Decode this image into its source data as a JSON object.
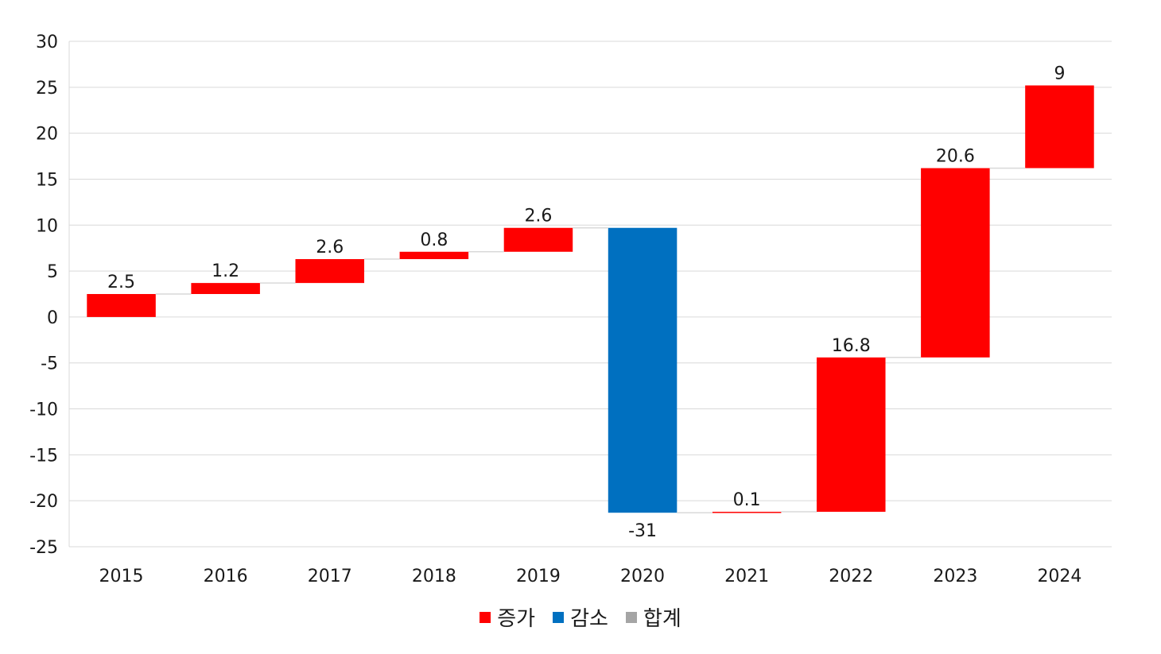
{
  "chart_data": {
    "type": "waterfall",
    "categories": [
      "2015",
      "2016",
      "2017",
      "2018",
      "2019",
      "2020",
      "2021",
      "2022",
      "2023",
      "2024"
    ],
    "values": [
      2.5,
      1.2,
      2.6,
      0.8,
      2.6,
      -31,
      0.1,
      16.8,
      20.6,
      9
    ],
    "value_labels": [
      "2.5",
      "1.2",
      "2.6",
      "0.8",
      "2.6",
      "-31",
      "0.1",
      "16.8",
      "20.6",
      "9"
    ],
    "ylim": [
      -25,
      30
    ],
    "yticks": [
      30,
      25,
      20,
      15,
      10,
      5,
      0,
      -5,
      -10,
      -15,
      -20,
      -25
    ],
    "grid": true,
    "legend_position": "bottom",
    "legend": [
      {
        "name": "증가",
        "color": "#ff0000"
      },
      {
        "name": "감소",
        "color": "#0070c0"
      },
      {
        "name": "합계",
        "color": "#a5a5a5"
      }
    ],
    "colors": {
      "increase": "#ff0000",
      "decrease": "#0070c0",
      "total": "#a5a5a5",
      "grid": "#d9d9d9",
      "connector": "#d9d9d9"
    }
  }
}
